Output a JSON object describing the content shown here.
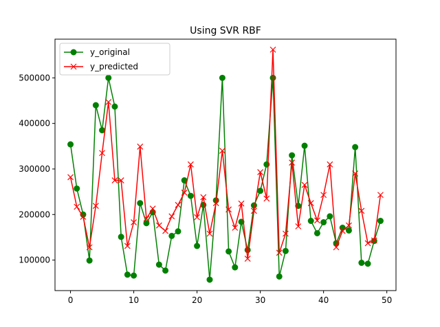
{
  "chart_data": {
    "type": "line",
    "title": "Using SVR RBF",
    "xlabel": "",
    "ylabel": "",
    "xlim": [
      -2.45,
      51.45
    ],
    "ylim": [
      33000,
      585000
    ],
    "xticks": [
      0,
      10,
      20,
      30,
      40,
      50
    ],
    "yticks": [
      100000,
      200000,
      300000,
      400000,
      500000
    ],
    "grid": false,
    "legend_position": "upper-left",
    "x": [
      0,
      1,
      2,
      3,
      4,
      5,
      6,
      7,
      8,
      9,
      10,
      11,
      12,
      13,
      14,
      15,
      16,
      17,
      18,
      19,
      20,
      21,
      22,
      23,
      24,
      25,
      26,
      27,
      28,
      29,
      30,
      31,
      32,
      33,
      34,
      35,
      36,
      37,
      38,
      39,
      40,
      41,
      42,
      43,
      44,
      45,
      46,
      47,
      48,
      49
    ],
    "series": [
      {
        "name": "y_original",
        "color": "#008000",
        "marker": "circle",
        "values": [
          354000,
          257000,
          200000,
          99000,
          440000,
          385000,
          500000,
          437000,
          151000,
          68000,
          66000,
          225000,
          181000,
          205000,
          90000,
          77000,
          153000,
          163000,
          275000,
          241000,
          131000,
          221000,
          57000,
          231000,
          500000,
          119000,
          84000,
          184000,
          122000,
          220000,
          252000,
          310000,
          500000,
          64000,
          120000,
          330000,
          219000,
          351000,
          186000,
          159000,
          183000,
          196000,
          137000,
          171000,
          165000,
          348000,
          94000,
          92000,
          142000,
          186000
        ]
      },
      {
        "name": "y_predicted",
        "color": "#ff0000",
        "marker": "x",
        "values": [
          282000,
          217000,
          195000,
          128000,
          219000,
          335000,
          447000,
          275000,
          275000,
          131000,
          183000,
          349000,
          191000,
          213000,
          176000,
          164000,
          196000,
          221000,
          248000,
          310000,
          194000,
          238000,
          158000,
          225000,
          340000,
          211000,
          171000,
          224000,
          103000,
          208000,
          293000,
          235000,
          562000,
          116000,
          158000,
          314000,
          174000,
          265000,
          225000,
          187000,
          243000,
          310000,
          128000,
          164000,
          176000,
          290000,
          208000,
          137000,
          143000,
          243000
        ]
      }
    ]
  }
}
